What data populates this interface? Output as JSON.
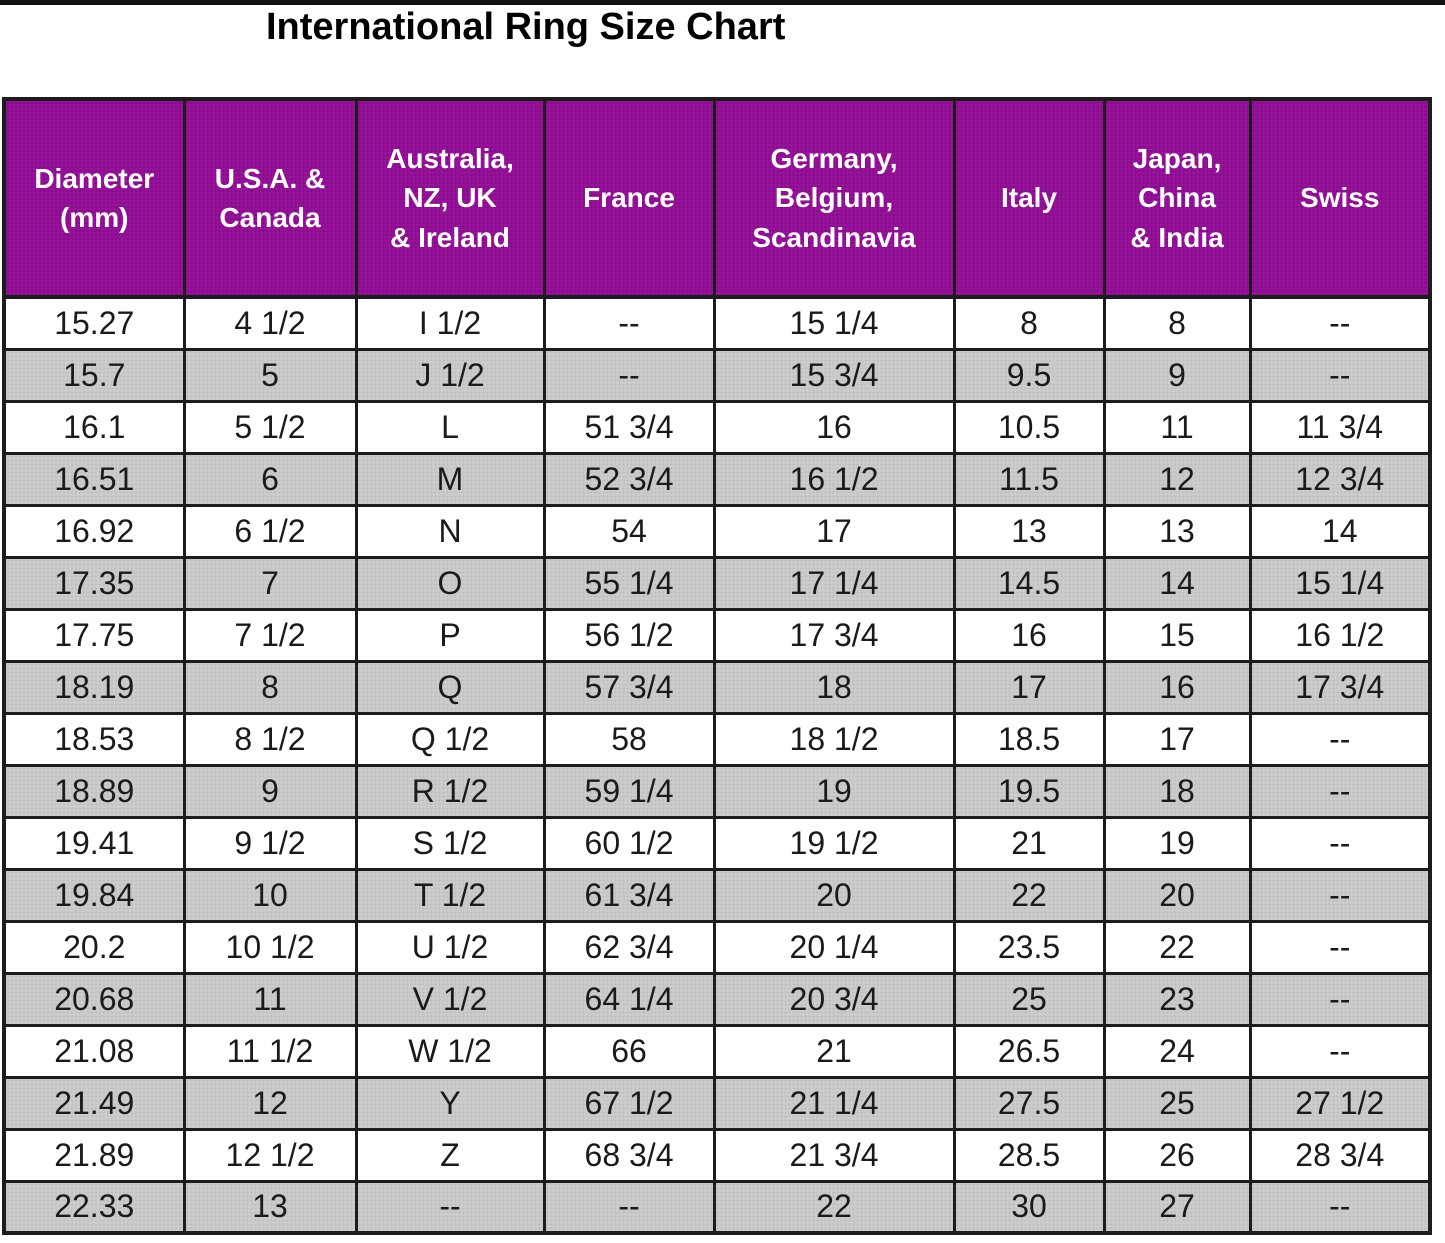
{
  "title": "International Ring Size Chart",
  "table": {
    "headers": [
      "Diameter\n(mm)",
      "U.S.A. &\nCanada",
      "Australia,\nNZ, UK\n& Ireland",
      "France",
      "Germany,\nBelgium,\nScandinavia",
      "Italy",
      "Japan,\nChina\n& India",
      "Swiss"
    ],
    "rows": [
      [
        "15.27",
        "4 1/2",
        "I 1/2",
        "--",
        "15 1/4",
        "8",
        "8",
        "--"
      ],
      [
        "15.7",
        "5",
        "J 1/2",
        "--",
        "15 3/4",
        "9.5",
        "9",
        "--"
      ],
      [
        "16.1",
        "5 1/2",
        "L",
        "51 3/4",
        "16",
        "10.5",
        "11",
        "11 3/4"
      ],
      [
        "16.51",
        "6",
        "M",
        "52 3/4",
        "16 1/2",
        "11.5",
        "12",
        "12 3/4"
      ],
      [
        "16.92",
        "6 1/2",
        "N",
        "54",
        "17",
        "13",
        "13",
        "14"
      ],
      [
        "17.35",
        "7",
        "O",
        "55 1/4",
        "17 1/4",
        "14.5",
        "14",
        "15 1/4"
      ],
      [
        "17.75",
        "7 1/2",
        "P",
        "56 1/2",
        "17 3/4",
        "16",
        "15",
        "16 1/2"
      ],
      [
        "18.19",
        "8",
        "Q",
        "57 3/4",
        "18",
        "17",
        "16",
        "17 3/4"
      ],
      [
        "18.53",
        "8 1/2",
        "Q 1/2",
        "58",
        "18 1/2",
        "18.5",
        "17",
        "--"
      ],
      [
        "18.89",
        "9",
        "R 1/2",
        "59 1/4",
        "19",
        "19.5",
        "18",
        "--"
      ],
      [
        "19.41",
        "9 1/2",
        "S 1/2",
        "60 1/2",
        "19 1/2",
        "21",
        "19",
        "--"
      ],
      [
        "19.84",
        "10",
        "T 1/2",
        "61 3/4",
        "20",
        "22",
        "20",
        "--"
      ],
      [
        "20.2",
        "10 1/2",
        "U 1/2",
        "62 3/4",
        "20 1/4",
        "23.5",
        "22",
        "--"
      ],
      [
        "20.68",
        "11",
        "V 1/2",
        "64 1/4",
        "20 3/4",
        "25",
        "23",
        "--"
      ],
      [
        "21.08",
        "11 1/2",
        "W 1/2",
        "66",
        "21",
        "26.5",
        "24",
        "--"
      ],
      [
        "21.49",
        "12",
        "Y",
        "67 1/2",
        "21 1/4",
        "27.5",
        "25",
        "27 1/2"
      ],
      [
        "21.89",
        "12 1/2",
        "Z",
        "68 3/4",
        "21 3/4",
        "28.5",
        "26",
        "28 3/4"
      ],
      [
        "22.33",
        "13",
        "--",
        "--",
        "22",
        "30",
        "27",
        "--"
      ]
    ]
  },
  "colors": {
    "header_bg": "#97119b",
    "header_text": "#ffffff",
    "row_bg": "#ffffff",
    "row_alt_bg": "#cccccc",
    "grid_border": "#1c1c1c",
    "title_text": "#000000",
    "top_rule": "#111111"
  }
}
